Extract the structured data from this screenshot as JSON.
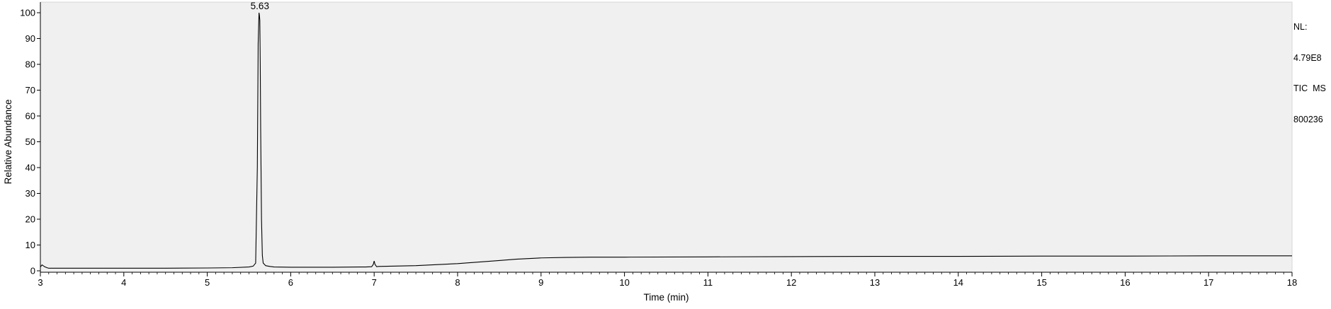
{
  "chart_data": {
    "type": "line",
    "title": "",
    "xlabel": "Time (min)",
    "ylabel": "Relative Abundance",
    "xlim": [
      3,
      18
    ],
    "ylim": [
      0,
      100
    ],
    "x_ticks": [
      3,
      4,
      5,
      6,
      7,
      8,
      9,
      10,
      11,
      12,
      13,
      14,
      15,
      16,
      17,
      18
    ],
    "x_tick_labels": [
      "3",
      "4",
      "5",
      "6",
      "7",
      "8",
      "9",
      "10",
      "11",
      "12",
      "13",
      "14",
      "15",
      "16",
      "17",
      "18"
    ],
    "y_ticks": [
      0,
      10,
      20,
      30,
      40,
      50,
      60,
      70,
      80,
      90,
      100
    ],
    "y_tick_labels": [
      "0",
      "10",
      "20",
      "30",
      "40",
      "50",
      "60",
      "70",
      "80",
      "90",
      "100"
    ],
    "grid": false,
    "background_color": "#f0f0f0",
    "line_color": "#000000",
    "annotations": [
      {
        "x": 5.63,
        "y": 100,
        "text": "5.63"
      }
    ],
    "info": [
      "NL:",
      "4.79E8",
      "TIC  MS",
      "800236"
    ],
    "series": [
      {
        "x": [
          3.0,
          3.02,
          3.05,
          3.08,
          3.1,
          3.15,
          3.2,
          3.5,
          4.0,
          4.5,
          5.0,
          5.3,
          5.5,
          5.55,
          5.58,
          5.6,
          5.61,
          5.62,
          5.625,
          5.63,
          5.635,
          5.64,
          5.65,
          5.66,
          5.67,
          5.7,
          5.75,
          5.8,
          6.0,
          6.5,
          6.9,
          6.97,
          6.99,
          7.0,
          7.01,
          7.03,
          7.05,
          7.2,
          7.5,
          8.0,
          8.3,
          8.5,
          8.7,
          9.0,
          9.3,
          9.6,
          10.0,
          11.0,
          12.0,
          13.0,
          14.0,
          15.0,
          16.0,
          17.0,
          18.0
        ],
        "y": [
          1.5,
          2.3,
          1.6,
          1.2,
          1.0,
          1.0,
          1.0,
          1.0,
          1.0,
          1.0,
          1.1,
          1.2,
          1.5,
          1.8,
          3.0,
          40.0,
          88.0,
          100.0,
          99.0,
          97.0,
          80.0,
          55.0,
          20.0,
          6.0,
          3.0,
          2.0,
          1.7,
          1.5,
          1.4,
          1.4,
          1.5,
          1.6,
          2.5,
          3.8,
          2.5,
          1.6,
          1.7,
          1.8,
          2.0,
          2.8,
          3.5,
          4.0,
          4.5,
          5.0,
          5.2,
          5.3,
          5.3,
          5.4,
          5.5,
          5.6,
          5.6,
          5.7,
          5.7,
          5.8,
          5.8
        ]
      }
    ]
  }
}
